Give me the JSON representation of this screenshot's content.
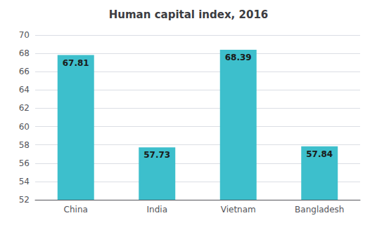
{
  "chart_data": {
    "type": "bar",
    "title": "Human capital index, 2016",
    "categories": [
      "China",
      "India",
      "Vietnam",
      "Bangladesh"
    ],
    "values": [
      67.81,
      57.73,
      68.39,
      57.84
    ],
    "color": "#3dbfcc",
    "ylim": [
      52,
      70
    ],
    "yticks": [
      52,
      54,
      56,
      58,
      60,
      62,
      64,
      66,
      68,
      70
    ],
    "grid": true,
    "data_labels": true
  }
}
